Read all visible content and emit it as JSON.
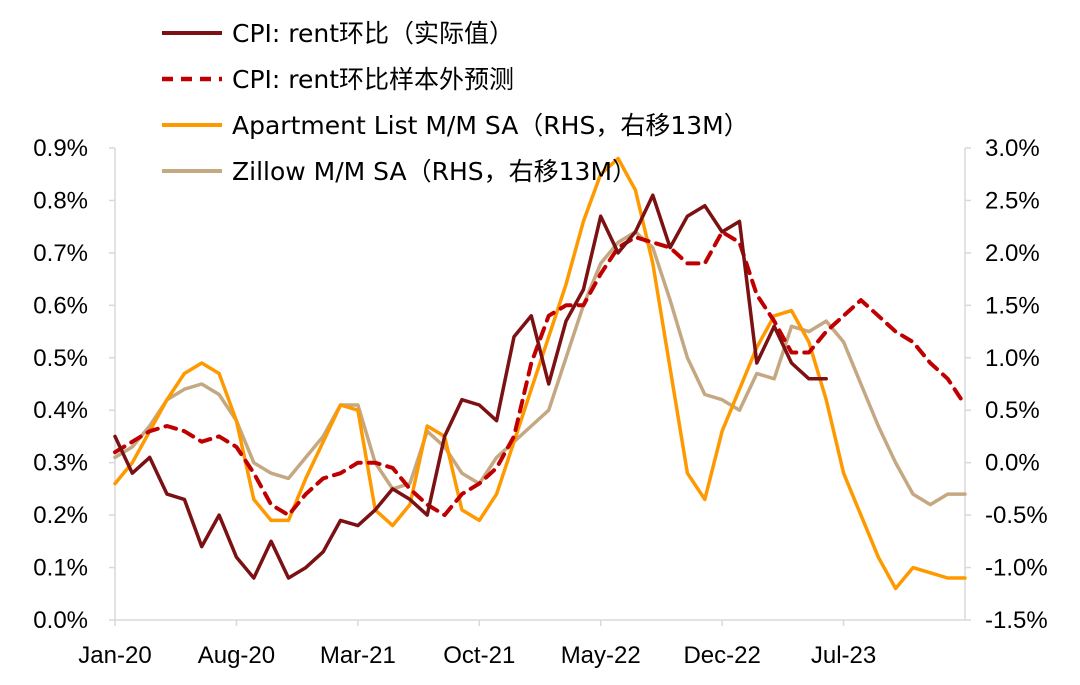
{
  "chart_data": {
    "type": "line",
    "title": "",
    "xlabel": "",
    "ylabel": "",
    "x_start": "2020-01",
    "x_end": "2024-02",
    "xticks": [
      "Jan-20",
      "Aug-20",
      "Mar-21",
      "Oct-21",
      "May-22",
      "Dec-22",
      "Jul-23"
    ],
    "y_left": {
      "lim": [
        0.0,
        0.9
      ],
      "ticks": [
        "0.0%",
        "0.1%",
        "0.2%",
        "0.3%",
        "0.4%",
        "0.5%",
        "0.6%",
        "0.7%",
        "0.8%",
        "0.9%"
      ]
    },
    "y_right": {
      "lim": [
        -1.5,
        3.0
      ],
      "ticks": [
        "-1.5%",
        "-1.0%",
        "-0.5%",
        "0.0%",
        "0.5%",
        "1.0%",
        "1.5%",
        "2.0%",
        "2.5%",
        "3.0%"
      ]
    },
    "grid": false,
    "legend_position": "top-center",
    "series": [
      {
        "name": "CPI: rent环比（实际值）",
        "axis": "left",
        "color": "#7b1113",
        "style": "solid",
        "x": [
          "2020-01",
          "2020-02",
          "2020-03",
          "2020-04",
          "2020-05",
          "2020-06",
          "2020-07",
          "2020-08",
          "2020-09",
          "2020-10",
          "2020-11",
          "2020-12",
          "2021-01",
          "2021-02",
          "2021-03",
          "2021-04",
          "2021-05",
          "2021-06",
          "2021-07",
          "2021-08",
          "2021-09",
          "2021-10",
          "2021-11",
          "2021-12",
          "2022-01",
          "2022-02",
          "2022-03",
          "2022-04",
          "2022-05",
          "2022-06",
          "2022-07",
          "2022-08",
          "2022-09",
          "2022-10",
          "2022-11",
          "2022-12",
          "2023-01",
          "2023-02",
          "2023-03",
          "2023-04",
          "2023-05",
          "2023-06"
        ],
        "values": [
          0.35,
          0.28,
          0.31,
          0.24,
          0.23,
          0.14,
          0.2,
          0.12,
          0.08,
          0.15,
          0.08,
          0.1,
          0.13,
          0.19,
          0.18,
          0.21,
          0.25,
          0.23,
          0.2,
          0.35,
          0.42,
          0.41,
          0.38,
          0.54,
          0.58,
          0.45,
          0.57,
          0.63,
          0.77,
          0.7,
          0.74,
          0.81,
          0.71,
          0.77,
          0.79,
          0.74,
          0.76,
          0.49,
          0.56,
          0.49,
          0.46,
          0.46
        ]
      },
      {
        "name": "CPI: rent环比样本外预测",
        "axis": "left",
        "color": "#c00000",
        "style": "dashed",
        "x": [
          "2020-01",
          "2020-02",
          "2020-03",
          "2020-04",
          "2020-05",
          "2020-06",
          "2020-07",
          "2020-08",
          "2020-09",
          "2020-10",
          "2020-11",
          "2020-12",
          "2021-01",
          "2021-02",
          "2021-03",
          "2021-04",
          "2021-05",
          "2021-06",
          "2021-07",
          "2021-08",
          "2021-09",
          "2021-10",
          "2021-11",
          "2021-12",
          "2022-01",
          "2022-02",
          "2022-03",
          "2022-04",
          "2022-05",
          "2022-06",
          "2022-07",
          "2022-08",
          "2022-09",
          "2022-10",
          "2022-11",
          "2022-12",
          "2023-01",
          "2023-02",
          "2023-03",
          "2023-04",
          "2023-05",
          "2023-06",
          "2023-07",
          "2023-08",
          "2023-09",
          "2023-10",
          "2023-11",
          "2023-12",
          "2024-01",
          "2024-02"
        ],
        "values": [
          0.32,
          0.34,
          0.36,
          0.37,
          0.36,
          0.34,
          0.35,
          0.33,
          0.28,
          0.22,
          0.2,
          0.24,
          0.27,
          0.28,
          0.3,
          0.3,
          0.29,
          0.25,
          0.22,
          0.2,
          0.24,
          0.26,
          0.29,
          0.35,
          0.49,
          0.58,
          0.6,
          0.6,
          0.66,
          0.71,
          0.73,
          0.72,
          0.71,
          0.68,
          0.68,
          0.74,
          0.72,
          0.62,
          0.57,
          0.51,
          0.51,
          0.55,
          0.58,
          0.61,
          0.58,
          0.55,
          0.53,
          0.49,
          0.46,
          0.41
        ]
      },
      {
        "name": "Apartment List  M/M SA（RHS，右移13M）",
        "axis": "right",
        "color": "#ff9900",
        "style": "solid",
        "x": [
          "2020-01",
          "2020-02",
          "2020-03",
          "2020-04",
          "2020-05",
          "2020-06",
          "2020-07",
          "2020-08",
          "2020-09",
          "2020-10",
          "2020-11",
          "2020-12",
          "2021-01",
          "2021-02",
          "2021-03",
          "2021-04",
          "2021-05",
          "2021-06",
          "2021-07",
          "2021-08",
          "2021-09",
          "2021-10",
          "2021-11",
          "2021-12",
          "2022-01",
          "2022-02",
          "2022-03",
          "2022-04",
          "2022-05",
          "2022-06",
          "2022-07",
          "2022-08",
          "2022-09",
          "2022-10",
          "2022-11",
          "2022-12",
          "2023-01",
          "2023-02",
          "2023-03",
          "2023-04",
          "2023-05",
          "2023-06",
          "2023-07",
          "2023-08",
          "2023-09",
          "2023-10",
          "2023-11",
          "2023-12",
          "2024-01",
          "2024-02"
        ],
        "values": [
          -0.2,
          0.0,
          0.3,
          0.6,
          0.85,
          0.95,
          0.85,
          0.4,
          -0.35,
          -0.55,
          -0.55,
          -0.15,
          0.2,
          0.55,
          0.5,
          -0.45,
          -0.6,
          -0.4,
          0.35,
          0.25,
          -0.45,
          -0.55,
          -0.3,
          0.2,
          0.7,
          1.2,
          1.7,
          2.3,
          2.75,
          2.9,
          2.6,
          1.9,
          0.9,
          -0.1,
          -0.35,
          0.3,
          0.7,
          1.1,
          1.4,
          1.45,
          1.15,
          0.6,
          -0.1,
          -0.5,
          -0.9,
          -1.2,
          -1.0,
          -1.05,
          -1.1,
          -1.1
        ]
      },
      {
        "name": "Zillow M/M SA（RHS，右移13M）",
        "axis": "right",
        "color": "#c4a882",
        "style": "solid",
        "x": [
          "2020-01",
          "2020-02",
          "2020-03",
          "2020-04",
          "2020-05",
          "2020-06",
          "2020-07",
          "2020-08",
          "2020-09",
          "2020-10",
          "2020-11",
          "2020-12",
          "2021-01",
          "2021-02",
          "2021-03",
          "2021-04",
          "2021-05",
          "2021-06",
          "2021-07",
          "2021-08",
          "2021-09",
          "2021-10",
          "2021-11",
          "2021-12",
          "2022-01",
          "2022-02",
          "2022-03",
          "2022-04",
          "2022-05",
          "2022-06",
          "2022-07",
          "2022-08",
          "2022-09",
          "2022-10",
          "2022-11",
          "2022-12",
          "2023-01",
          "2023-02",
          "2023-03",
          "2023-04",
          "2023-05",
          "2023-06",
          "2023-07",
          "2023-08",
          "2023-09",
          "2023-10",
          "2023-11",
          "2023-12",
          "2024-01",
          "2024-02"
        ],
        "values": [
          0.05,
          0.15,
          0.35,
          0.6,
          0.7,
          0.75,
          0.65,
          0.4,
          0.0,
          -0.1,
          -0.15,
          0.05,
          0.25,
          0.55,
          0.55,
          0.0,
          -0.25,
          -0.2,
          0.3,
          0.15,
          -0.1,
          -0.2,
          0.05,
          0.2,
          0.35,
          0.5,
          1.0,
          1.5,
          1.9,
          2.1,
          2.2,
          2.05,
          1.55,
          1.0,
          0.65,
          0.6,
          0.5,
          0.85,
          0.8,
          1.3,
          1.25,
          1.35,
          1.15,
          0.75,
          0.35,
          0.0,
          -0.3,
          -0.4,
          -0.3,
          -0.3
        ]
      }
    ]
  }
}
